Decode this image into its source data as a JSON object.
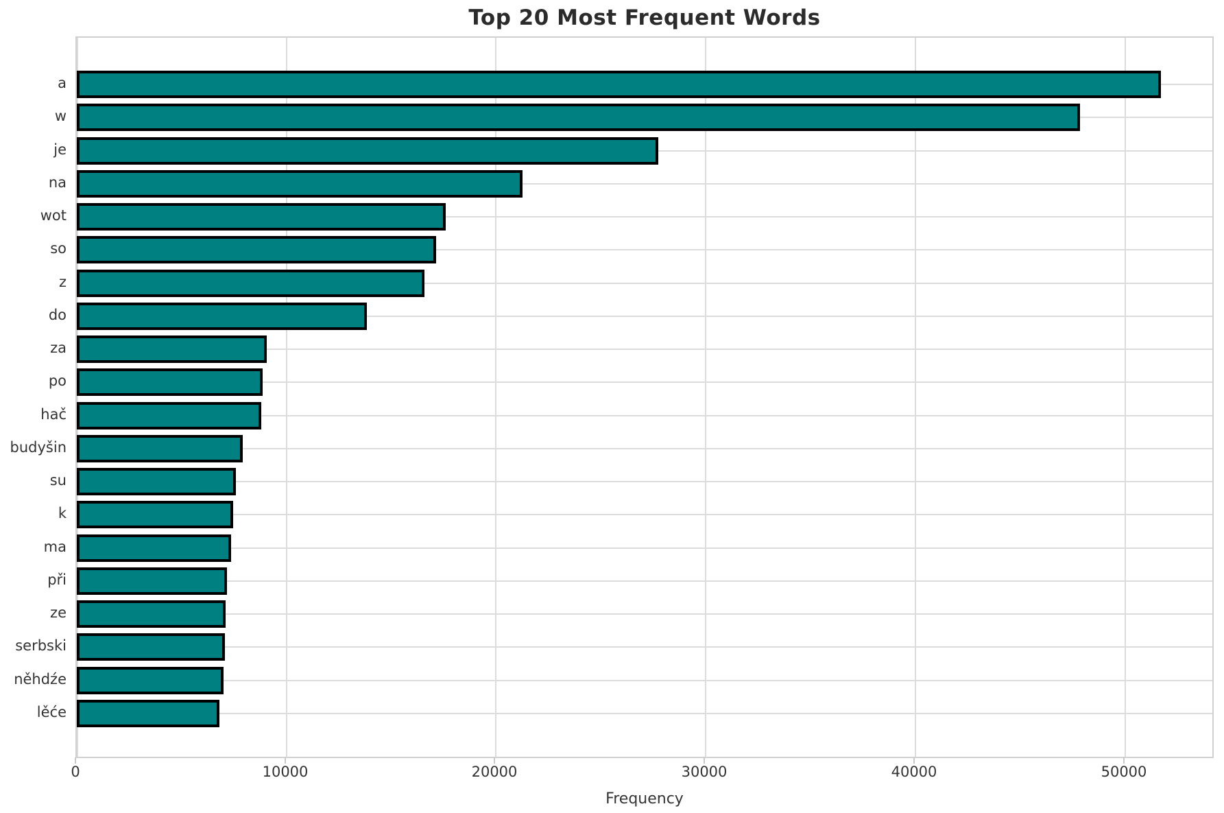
{
  "chart_data": {
    "type": "bar",
    "orientation": "horizontal",
    "title": "Top 20 Most Frequent Words",
    "xlabel": "Frequency",
    "ylabel": "",
    "categories": [
      "a",
      "w",
      "je",
      "na",
      "wot",
      "so",
      "z",
      "do",
      "za",
      "po",
      "hač",
      "budyšin",
      "su",
      "k",
      "ma",
      "při",
      "ze",
      "serbski",
      "něhdźe",
      "lěće"
    ],
    "values": [
      51700,
      47850,
      27750,
      21250,
      17600,
      17150,
      16600,
      13850,
      9050,
      8850,
      8800,
      7900,
      7600,
      7450,
      7350,
      7150,
      7100,
      7050,
      7000,
      6800
    ],
    "x_ticks": [
      0,
      10000,
      20000,
      30000,
      40000,
      50000
    ],
    "xlim": [
      0,
      54300
    ],
    "grid": true,
    "legend": false,
    "colors": {
      "bar_fill": "#008080",
      "bar_edge": "#000000",
      "grid_line": "#dcdcdc",
      "axis_spine": "#d0d0d0",
      "title_text": "#2b2b2b",
      "tick_text": "#333333",
      "background": "#ffffff"
    }
  }
}
